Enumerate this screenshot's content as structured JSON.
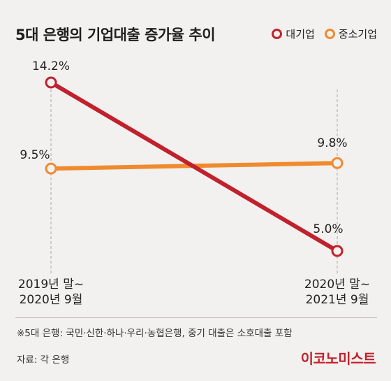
{
  "header": {
    "title": "5대 은행의 기업대출 증가율 추이"
  },
  "legend": [
    {
      "label": "대기업",
      "color": "#c0212c"
    },
    {
      "label": "중소기업",
      "color": "#ef8a2f"
    }
  ],
  "chart_data": {
    "type": "line",
    "categories": [
      "2019년 말~\n2020년 9월",
      "2020년 말~\n2021년 9월"
    ],
    "series": [
      {
        "name": "대기업",
        "values": [
          14.2,
          5.0
        ],
        "labels": [
          "14.2%",
          "5.0%"
        ],
        "color": "#c0212c"
      },
      {
        "name": "중소기업",
        "values": [
          9.5,
          9.8
        ],
        "labels": [
          "9.5%",
          "9.8%"
        ],
        "color": "#ef8a2f"
      }
    ],
    "unit": "%",
    "grid": "vertical dashed",
    "legend_position": "top-right"
  },
  "footer": {
    "note": "※5대 은행: 국민·신한·하나·우리·농협은행,  중기 대출은 소호대출 포함",
    "source": "자료: 각 은행",
    "brand": "이코노미스트"
  }
}
